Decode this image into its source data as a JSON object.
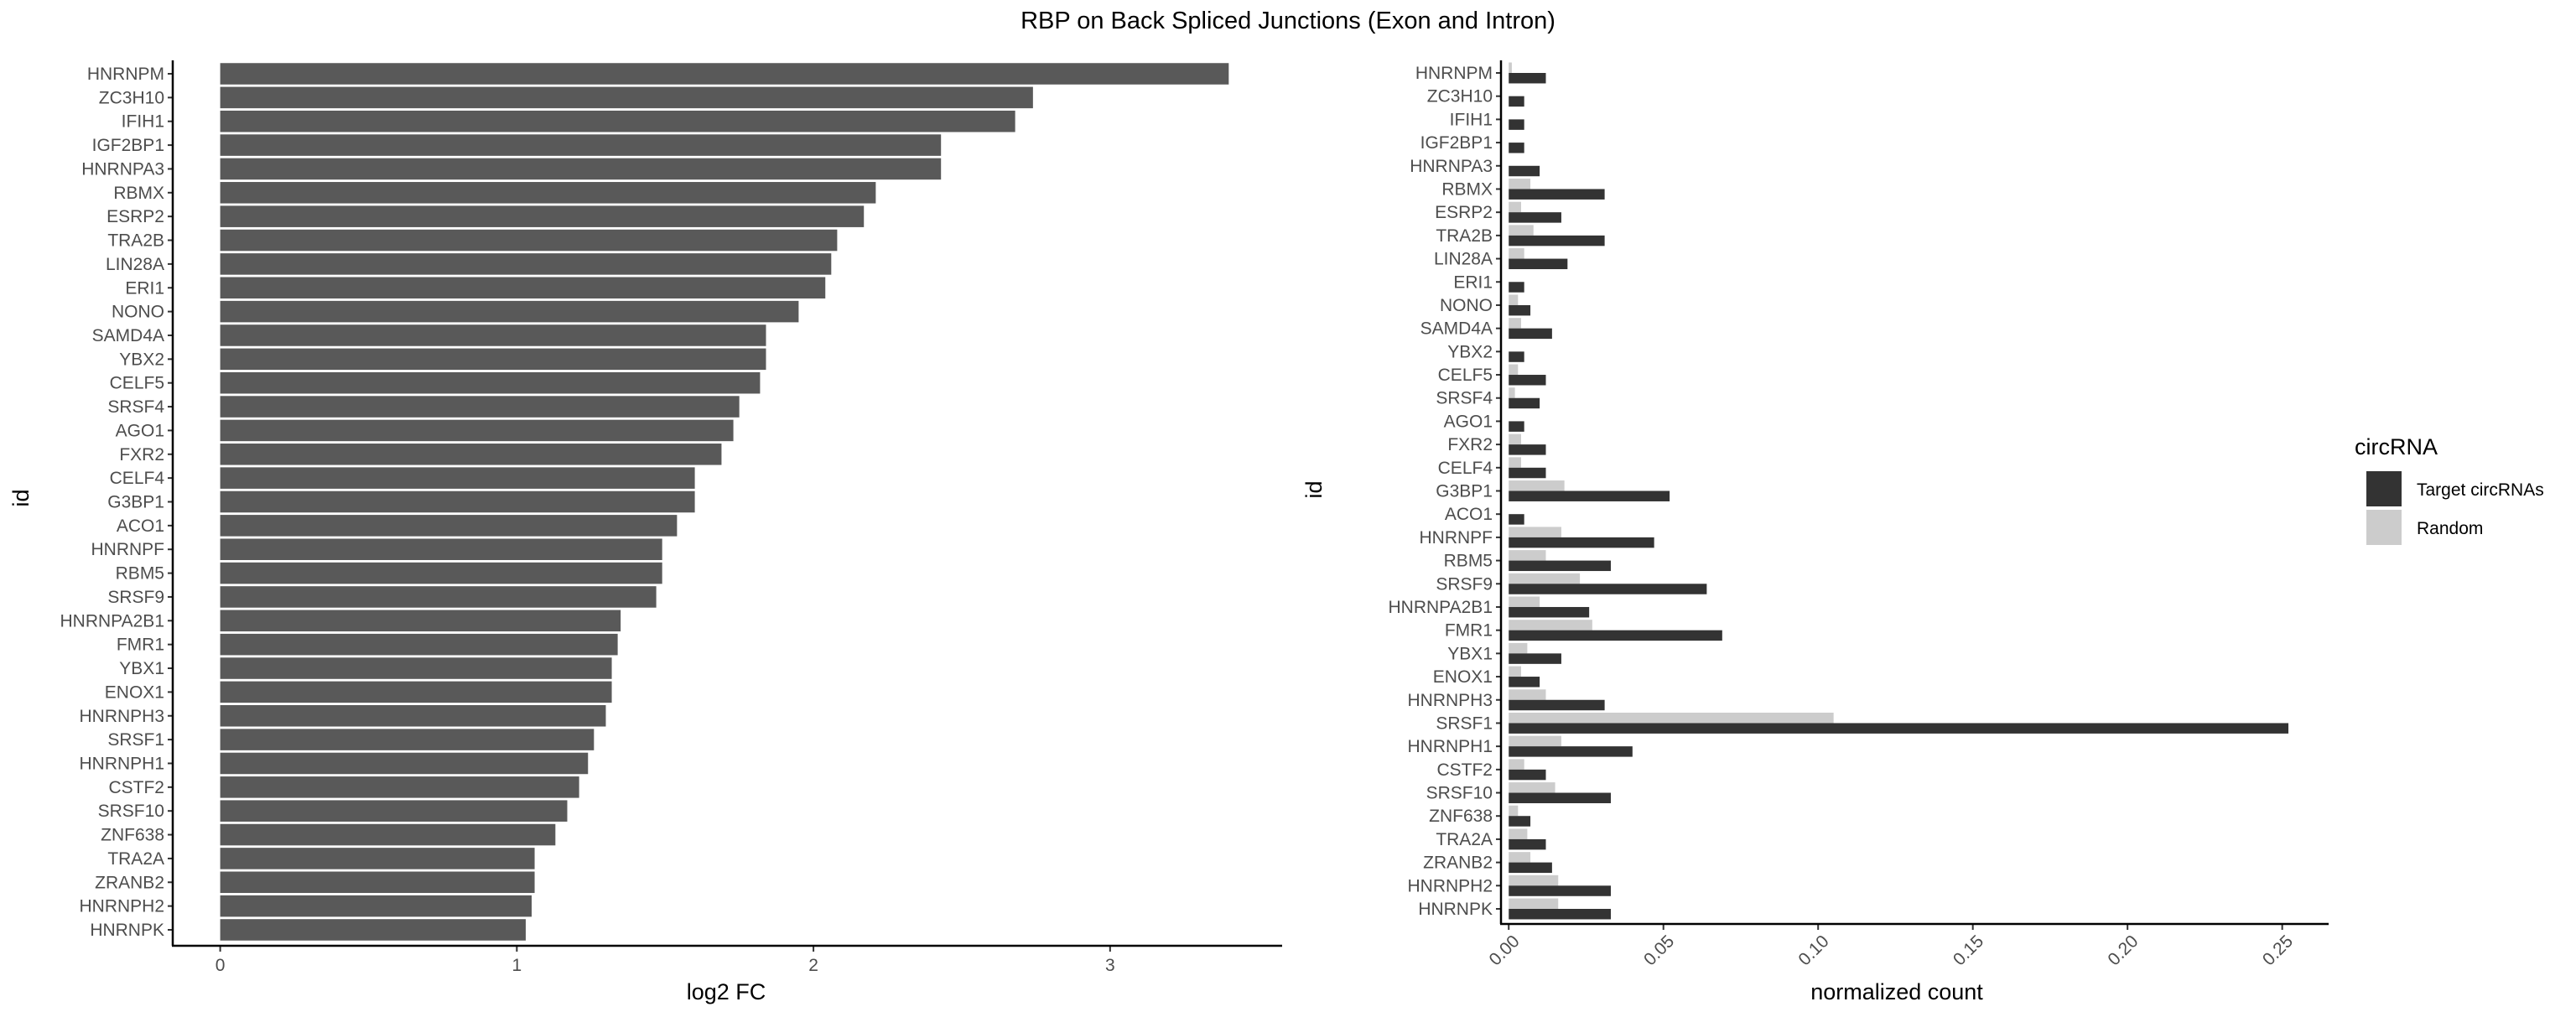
{
  "title": "RBP on Back Spliced Junctions (Exon and Intron)",
  "chart_data": [
    {
      "type": "bar",
      "orientation": "horizontal",
      "xlabel": "log2 FC",
      "ylabel": "id",
      "xlim": [
        -0.16,
        3.58
      ],
      "xticks": [
        0,
        1,
        2,
        3
      ],
      "grid": false,
      "color": "#595959",
      "categories": [
        "HNRNPM",
        "ZC3H10",
        "IFIH1",
        "IGF2BP1",
        "HNRNPA3",
        "RBMX",
        "ESRP2",
        "TRA2B",
        "LIN28A",
        "ERI1",
        "NONO",
        "SAMD4A",
        "YBX2",
        "CELF5",
        "SRSF4",
        "AGO1",
        "FXR2",
        "CELF4",
        "G3BP1",
        "ACO1",
        "HNRNPF",
        "RBM5",
        "SRSF9",
        "HNRNPA2B1",
        "FMR1",
        "YBX1",
        "ENOX1",
        "HNRNPH3",
        "SRSF1",
        "HNRNPH1",
        "CSTF2",
        "SRSF10",
        "ZNF638",
        "TRA2A",
        "ZRANB2",
        "HNRNPH2",
        "HNRNPK"
      ],
      "values": [
        3.4,
        2.74,
        2.68,
        2.43,
        2.43,
        2.21,
        2.17,
        2.08,
        2.06,
        2.04,
        1.95,
        1.84,
        1.84,
        1.82,
        1.75,
        1.73,
        1.69,
        1.6,
        1.6,
        1.54,
        1.49,
        1.49,
        1.47,
        1.35,
        1.34,
        1.32,
        1.32,
        1.3,
        1.26,
        1.24,
        1.21,
        1.17,
        1.13,
        1.06,
        1.06,
        1.05,
        1.03
      ]
    },
    {
      "type": "bar",
      "orientation": "horizontal",
      "xlabel": "normalized count",
      "ylabel": "id",
      "xlim": [
        -0.0025,
        0.265
      ],
      "xticks": [
        0.0,
        0.05,
        0.1,
        0.15,
        0.2,
        0.25
      ],
      "xtick_labels": [
        "0.00",
        "0.05",
        "0.10",
        "0.15",
        "0.20",
        "0.25"
      ],
      "grid": false,
      "legend": {
        "title": "circRNA",
        "position": "right"
      },
      "categories": [
        "HNRNPM",
        "ZC3H10",
        "IFIH1",
        "IGF2BP1",
        "HNRNPA3",
        "RBMX",
        "ESRP2",
        "TRA2B",
        "LIN28A",
        "ERI1",
        "NONO",
        "SAMD4A",
        "YBX2",
        "CELF5",
        "SRSF4",
        "AGO1",
        "FXR2",
        "CELF4",
        "G3BP1",
        "ACO1",
        "HNRNPF",
        "RBM5",
        "SRSF9",
        "HNRNPA2B1",
        "FMR1",
        "YBX1",
        "ENOX1",
        "HNRNPH3",
        "SRSF1",
        "HNRNPH1",
        "CSTF2",
        "SRSF10",
        "ZNF638",
        "TRA2A",
        "ZRANB2",
        "HNRNPH2",
        "HNRNPK"
      ],
      "series": [
        {
          "name": "Random",
          "color": "#cccccc",
          "values": [
            0.001,
            0,
            0,
            0,
            0,
            0.007,
            0.004,
            0.008,
            0.005,
            0,
            0.003,
            0.004,
            0,
            0.003,
            0.002,
            0,
            0.004,
            0.004,
            0.018,
            0,
            0.017,
            0.012,
            0.023,
            0.01,
            0.027,
            0.006,
            0.004,
            0.012,
            0.105,
            0.017,
            0.005,
            0.015,
            0.003,
            0.006,
            0.007,
            0.016,
            0.016
          ]
        },
        {
          "name": "Target circRNAs",
          "color": "#333333",
          "values": [
            0.012,
            0.005,
            0.005,
            0.005,
            0.01,
            0.031,
            0.017,
            0.031,
            0.019,
            0.005,
            0.007,
            0.014,
            0.005,
            0.012,
            0.01,
            0.005,
            0.012,
            0.012,
            0.052,
            0.005,
            0.047,
            0.033,
            0.064,
            0.026,
            0.069,
            0.017,
            0.01,
            0.031,
            0.252,
            0.04,
            0.012,
            0.033,
            0.007,
            0.012,
            0.014,
            0.033,
            0.033
          ]
        }
      ]
    }
  ]
}
